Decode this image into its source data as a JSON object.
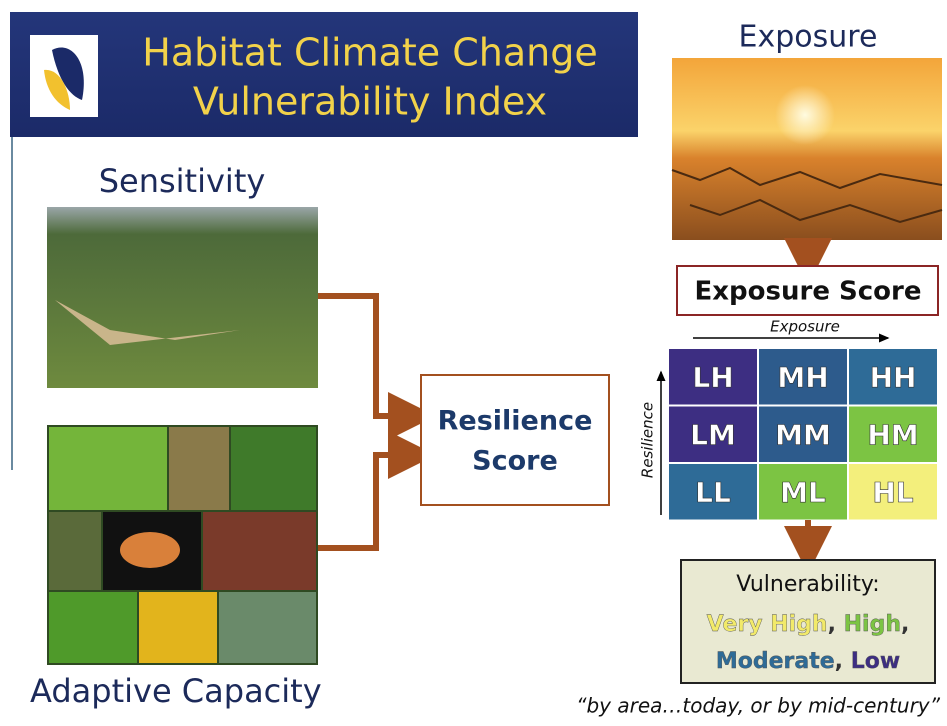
{
  "header": {
    "title_lines": [
      "Habitat Climate Change",
      "Vulnerability Index"
    ]
  },
  "sensitivity": {
    "label": "Sensitivity"
  },
  "adaptive_capacity": {
    "label": "Adaptive Capacity"
  },
  "resilience": {
    "label_lines": [
      "Resilience",
      "Score"
    ]
  },
  "exposure": {
    "label": "Exposure"
  },
  "exposure_score": {
    "label": "Exposure Score"
  },
  "matrix": {
    "x_axis": "Exposure",
    "y_axis": "Resilience",
    "rows": [
      [
        {
          "text": "LH",
          "color": "#3d2e82"
        },
        {
          "text": "MH",
          "color": "#2d5b8c"
        },
        {
          "text": "HH",
          "color": "#2e6b97"
        }
      ],
      [
        {
          "text": "LM",
          "color": "#3d2e82"
        },
        {
          "text": "MM",
          "color": "#2d5b8c"
        },
        {
          "text": "HM",
          "color": "#7cc443"
        }
      ],
      [
        {
          "text": "LL",
          "color": "#2e6b97"
        },
        {
          "text": "ML",
          "color": "#7cc443"
        },
        {
          "text": "HL",
          "color": "#f3ef7c"
        }
      ]
    ]
  },
  "vulnerability": {
    "heading": "Vulnerability:",
    "separator": ",",
    "levels": [
      {
        "text": "Very High",
        "color": "#f2ea6a"
      },
      {
        "text": "High",
        "color": "#7cc443"
      },
      {
        "text": "Moderate",
        "color": "#2e6b97"
      },
      {
        "text": "Low",
        "color": "#3d2e82"
      }
    ]
  },
  "footnote": "“by area…today, or by mid-century”"
}
